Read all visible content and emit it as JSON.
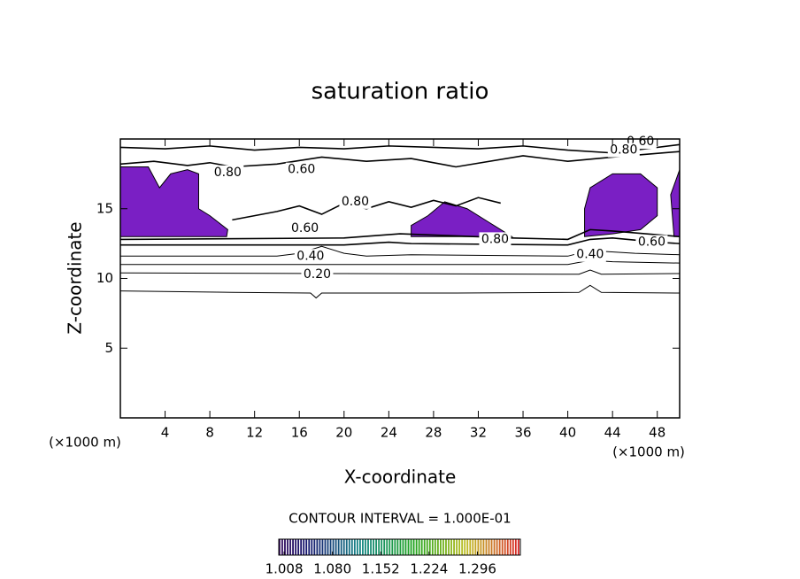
{
  "chart_data": {
    "type": "contour",
    "title": "saturation ratio",
    "x_label": "X-coordinate",
    "y_label": "Z-coordinate",
    "x_unit": "(×1000 m)",
    "y_unit": "(×1000 m)",
    "xlim": [
      0,
      50
    ],
    "ylim": [
      0,
      20
    ],
    "xticks": [
      4,
      8,
      12,
      16,
      20,
      24,
      28,
      32,
      36,
      40,
      44,
      48
    ],
    "yticks": [
      5,
      10,
      15
    ],
    "line_color": "#000000",
    "fill_color": "#7a1fc4",
    "contours": [
      {
        "level": 0.1,
        "x": [
          0,
          10,
          17,
          17.5,
          18,
          30,
          41,
          42,
          43,
          50
        ],
        "z": [
          9.1,
          9.0,
          8.95,
          8.6,
          8.95,
          8.95,
          9.0,
          9.5,
          9.0,
          8.95
        ]
      },
      {
        "level": 0.2,
        "x": [
          0,
          20,
          41,
          42,
          43,
          50
        ],
        "z": [
          10.4,
          10.35,
          10.3,
          10.6,
          10.3,
          10.35
        ]
      },
      {
        "level": 0.3,
        "x": [
          0,
          40,
          42,
          44,
          50
        ],
        "z": [
          11.0,
          11.0,
          11.3,
          11.2,
          11.1
        ]
      },
      {
        "level": 0.4,
        "x": [
          0,
          14,
          16,
          18,
          20,
          22,
          26,
          40,
          42,
          46,
          50
        ],
        "z": [
          11.6,
          11.6,
          11.8,
          12.3,
          11.8,
          11.6,
          11.7,
          11.6,
          12.0,
          11.8,
          11.7
        ]
      },
      {
        "level": 0.6,
        "x": [
          0,
          20,
          24,
          26,
          40,
          42,
          44,
          48,
          50
        ],
        "z": [
          12.4,
          12.4,
          12.6,
          12.5,
          12.4,
          12.8,
          12.9,
          12.6,
          12.5
        ]
      },
      {
        "level": 0.8,
        "x": [
          0,
          20,
          25,
          35,
          40,
          42,
          44,
          50
        ],
        "z": [
          12.8,
          12.9,
          13.2,
          12.9,
          12.8,
          13.5,
          13.4,
          13.0
        ]
      },
      {
        "level": 0.6,
        "x": [
          0,
          3,
          6,
          8,
          10,
          14,
          18,
          22,
          26,
          30,
          36,
          40,
          44,
          50
        ],
        "z": [
          18.2,
          18.4,
          18.1,
          18.3,
          18.0,
          18.2,
          18.7,
          18.4,
          18.6,
          18.0,
          18.8,
          18.4,
          18.7,
          19.1
        ]
      },
      {
        "level": 0.8,
        "x": [
          0,
          4,
          8,
          12,
          16,
          20,
          24,
          28,
          32,
          36,
          40,
          44,
          50
        ],
        "z": [
          19.4,
          19.3,
          19.5,
          19.2,
          19.4,
          19.3,
          19.5,
          19.4,
          19.3,
          19.5,
          19.2,
          19.0,
          19.6
        ]
      },
      {
        "level": 0.8,
        "x": [
          10,
          14,
          16,
          18,
          20,
          22,
          24,
          26,
          28,
          30,
          32,
          34
        ],
        "z": [
          14.2,
          14.8,
          15.2,
          14.6,
          15.4,
          15.0,
          15.5,
          15.1,
          15.6,
          15.2,
          15.8,
          15.4
        ]
      }
    ],
    "filled_regions": [
      {
        "x": [
          0,
          9.5,
          9.6,
          8,
          7,
          7,
          6,
          4.5,
          3.5,
          2.5,
          0
        ],
        "z": [
          13,
          13,
          13.5,
          14.5,
          15,
          17.5,
          17.8,
          17.5,
          16.5,
          18,
          18
        ]
      },
      {
        "x": [
          26,
          35,
          33,
          31,
          29,
          27.5,
          26
        ],
        "z": [
          13,
          13,
          14,
          15,
          15.5,
          14.5,
          13.8
        ]
      },
      {
        "x": [
          41.5,
          44,
          46.5,
          48,
          48,
          46.5,
          44,
          42,
          41.5
        ],
        "z": [
          13,
          13.2,
          13.5,
          14.5,
          16.5,
          17.5,
          17.5,
          16.5,
          15
        ]
      },
      {
        "x": [
          49.5,
          50,
          50,
          49.2
        ],
        "z": [
          13,
          13,
          17.8,
          16
        ]
      }
    ],
    "contour_labels": [
      {
        "value": 0.2,
        "label": "0.20",
        "x": 17.6,
        "z": 10.3
      },
      {
        "value": 0.4,
        "label": "0.40",
        "x": 17.0,
        "z": 11.6
      },
      {
        "value": 0.4,
        "label": "0.40",
        "x": 42.0,
        "z": 11.7
      },
      {
        "value": 0.6,
        "label": "0.60",
        "x": 16.5,
        "z": 13.6
      },
      {
        "value": 0.6,
        "label": "0.60",
        "x": 47.5,
        "z": 12.6
      },
      {
        "value": 0.8,
        "label": "0.80",
        "x": 33.5,
        "z": 12.8
      },
      {
        "value": 0.6,
        "label": "0.60",
        "x": 46.5,
        "z": 19.8
      },
      {
        "value": 0.8,
        "label": "0.80",
        "x": 45.0,
        "z": 19.2
      },
      {
        "value": 0.8,
        "label": "0.80",
        "x": 9.6,
        "z": 17.6
      },
      {
        "value": 0.6,
        "label": "0.60",
        "x": 16.2,
        "z": 17.8
      },
      {
        "value": 0.8,
        "label": "0.80",
        "x": 21.0,
        "z": 15.5
      }
    ],
    "contour_interval_label": "CONTOUR INTERVAL = 1.000E-01",
    "colorbar": {
      "lim": [
        1.0,
        1.36
      ],
      "ticks": [
        1.008,
        {
          "value": 1.08,
          "label": "1.080"
        },
        1.152,
        1.224,
        1.296
      ]
    }
  }
}
